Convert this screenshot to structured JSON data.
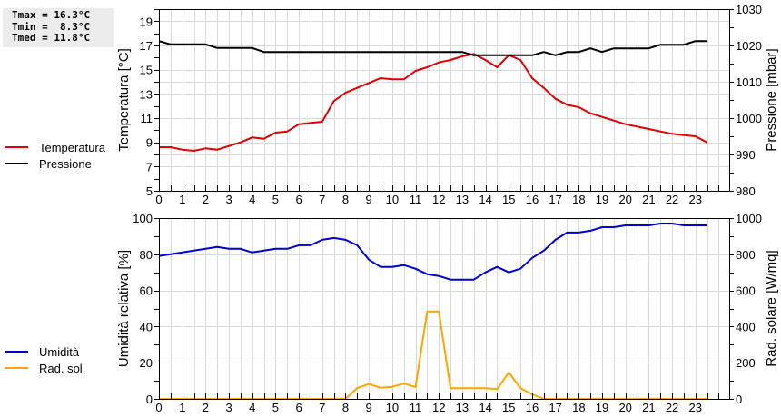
{
  "stats": {
    "tmax": "Tmax = 16.3°C",
    "tmin": "Tmin =  8.3°C",
    "tmed": "Tmed = 11.8°C"
  },
  "legend_top": [
    {
      "label": "Temperatura",
      "color": "#e00000"
    },
    {
      "label": "Pressione",
      "color": "#000000"
    }
  ],
  "legend_bottom": [
    {
      "label": "Umidità",
      "color": "#0000d0"
    },
    {
      "label": "Rad. sol.",
      "color": "#ffa500"
    }
  ],
  "chart_data": [
    {
      "type": "line",
      "title": "",
      "xlabel": "",
      "ylabel": "Temperatura [°C]",
      "ylabel_right": "Pressione [mbar]",
      "xlim": [
        0,
        24.45
      ],
      "ylim": [
        5,
        20
      ],
      "ylim_right": [
        980,
        1030
      ],
      "xticks": [
        0,
        1,
        2,
        3,
        4,
        5,
        6,
        7,
        8,
        9,
        10,
        11,
        12,
        13,
        14,
        15,
        16,
        17,
        18,
        19,
        20,
        21,
        22,
        23
      ],
      "yticks": [
        5,
        7,
        9,
        11,
        13,
        15,
        17,
        19
      ],
      "yticks_right": [
        980,
        990,
        1000,
        1010,
        1020,
        1030
      ],
      "grid": true,
      "legend_position": "left",
      "x": [
        0,
        0.5,
        1,
        1.5,
        2,
        2.5,
        3,
        3.5,
        4,
        4.5,
        5,
        5.5,
        6,
        6.5,
        7,
        7.5,
        8,
        8.5,
        9,
        9.5,
        10,
        10.5,
        11,
        11.5,
        12,
        12.5,
        13,
        13.5,
        14,
        14.5,
        15,
        15.5,
        16,
        16.5,
        17,
        17.5,
        18,
        18.5,
        19,
        19.5,
        20,
        20.5,
        21,
        21.5,
        22,
        22.5,
        23,
        23.5
      ],
      "series": [
        {
          "name": "Temperatura",
          "axis": "left",
          "color": "#e00000",
          "values": [
            8.6,
            8.6,
            8.4,
            8.3,
            8.5,
            8.4,
            8.7,
            9.0,
            9.4,
            9.3,
            9.8,
            9.9,
            10.5,
            10.6,
            10.7,
            12.4,
            13.1,
            13.5,
            13.9,
            14.3,
            14.2,
            14.2,
            14.9,
            15.2,
            15.6,
            15.8,
            16.1,
            16.3,
            15.8,
            15.2,
            16.2,
            15.8,
            14.3,
            13.5,
            12.6,
            12.1,
            11.9,
            11.4,
            11.1,
            10.8,
            10.5,
            10.3,
            10.1,
            9.9,
            9.7,
            9.6,
            9.5,
            9.0
          ]
        },
        {
          "name": "Pressione",
          "axis": "right",
          "color": "#000000",
          "values": [
            1021.2,
            1020.3,
            1020.3,
            1020.3,
            1020.3,
            1019.3,
            1019.3,
            1019.3,
            1019.3,
            1018.2,
            1018.2,
            1018.2,
            1018.2,
            1018.2,
            1018.2,
            1018.2,
            1018.2,
            1018.2,
            1018.2,
            1018.2,
            1018.2,
            1018.2,
            1018.2,
            1018.2,
            1018.2,
            1018.2,
            1018.2,
            1017.3,
            1017.3,
            1017.3,
            1017.3,
            1017.3,
            1017.3,
            1018.2,
            1017.3,
            1018.2,
            1018.2,
            1019.2,
            1018.2,
            1019.2,
            1019.2,
            1019.2,
            1019.2,
            1020.2,
            1020.2,
            1020.2,
            1021.2,
            1021.2
          ]
        }
      ]
    },
    {
      "type": "line",
      "title": "",
      "xlabel": "",
      "ylabel": "Umidità relativa [%]",
      "ylabel_right": "Rad. solare [W/mq]",
      "xlim": [
        0,
        24.45
      ],
      "ylim": [
        0,
        100
      ],
      "ylim_right": [
        0,
        1000
      ],
      "xticks": [
        0,
        1,
        2,
        3,
        4,
        5,
        6,
        7,
        8,
        9,
        10,
        11,
        12,
        13,
        14,
        15,
        16,
        17,
        18,
        19,
        20,
        21,
        22,
        23
      ],
      "yticks": [
        0,
        20,
        40,
        60,
        80,
        100
      ],
      "yticks_right": [
        0,
        200,
        400,
        600,
        800,
        1000
      ],
      "grid": true,
      "legend_position": "left",
      "x": [
        0,
        0.5,
        1,
        1.5,
        2,
        2.5,
        3,
        3.5,
        4,
        4.5,
        5,
        5.5,
        6,
        6.5,
        7,
        7.5,
        8,
        8.5,
        9,
        9.5,
        10,
        10.5,
        11,
        11.5,
        12,
        12.5,
        13,
        13.5,
        14,
        14.5,
        15,
        15.5,
        16,
        16.5,
        17,
        17.5,
        18,
        18.5,
        19,
        19.5,
        20,
        20.5,
        21,
        21.5,
        22,
        22.5,
        23,
        23.5
      ],
      "series": [
        {
          "name": "Umidità",
          "axis": "left",
          "color": "#0000d0",
          "values": [
            79,
            80,
            81,
            82,
            83,
            84,
            83,
            83,
            81,
            82,
            83,
            83,
            85,
            85,
            88,
            89,
            88,
            85,
            77,
            73,
            73,
            74,
            72,
            69,
            68,
            66,
            66,
            66,
            70,
            73,
            70,
            72,
            78,
            82,
            88,
            92,
            92,
            93,
            95,
            95,
            96,
            96,
            96,
            97,
            97,
            96,
            96,
            96
          ]
        },
        {
          "name": "Rad. sol.",
          "axis": "right",
          "color": "#ffa500",
          "values": [
            0,
            0,
            0,
            0,
            0,
            0,
            0,
            0,
            0,
            0,
            0,
            0,
            0,
            0,
            0,
            0,
            0,
            60,
            82,
            62,
            67,
            85,
            65,
            484,
            484,
            59,
            59,
            59,
            59,
            54,
            146,
            60,
            25,
            0,
            0,
            0,
            0,
            0,
            0,
            0,
            0,
            0,
            0,
            0,
            0,
            0,
            0,
            0
          ]
        }
      ]
    }
  ]
}
